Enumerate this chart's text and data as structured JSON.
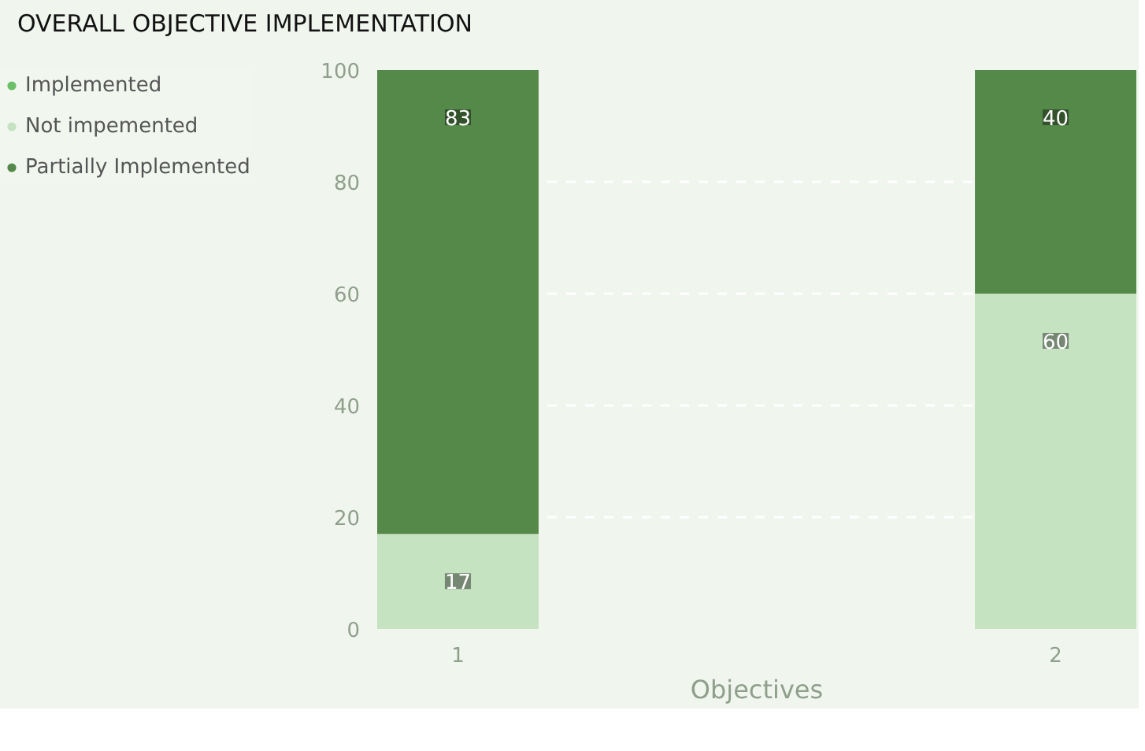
{
  "chart_data": {
    "type": "bar",
    "title": "OVERALL OBJECTIVE IMPLEMENTATION",
    "xlabel": "Objectives",
    "categories": [
      "1",
      "2"
    ],
    "stacked": true,
    "series": [
      {
        "name": "Implemented",
        "color": "#6abf69",
        "values": [
          0,
          0
        ],
        "value_labels": [
          null,
          null
        ]
      },
      {
        "name": "Not impemented",
        "color": "#c5e2c1",
        "values": [
          17,
          60
        ],
        "value_labels": [
          "17",
          "60"
        ]
      },
      {
        "name": "Partially Implemented",
        "color": "#55894a",
        "values": [
          83,
          40
        ],
        "value_labels": [
          "83",
          "40"
        ]
      }
    ],
    "ylim": [
      0,
      100
    ],
    "yticks": [
      0,
      20,
      40,
      60,
      80,
      100
    ],
    "grid": "y",
    "legend": "top left"
  }
}
